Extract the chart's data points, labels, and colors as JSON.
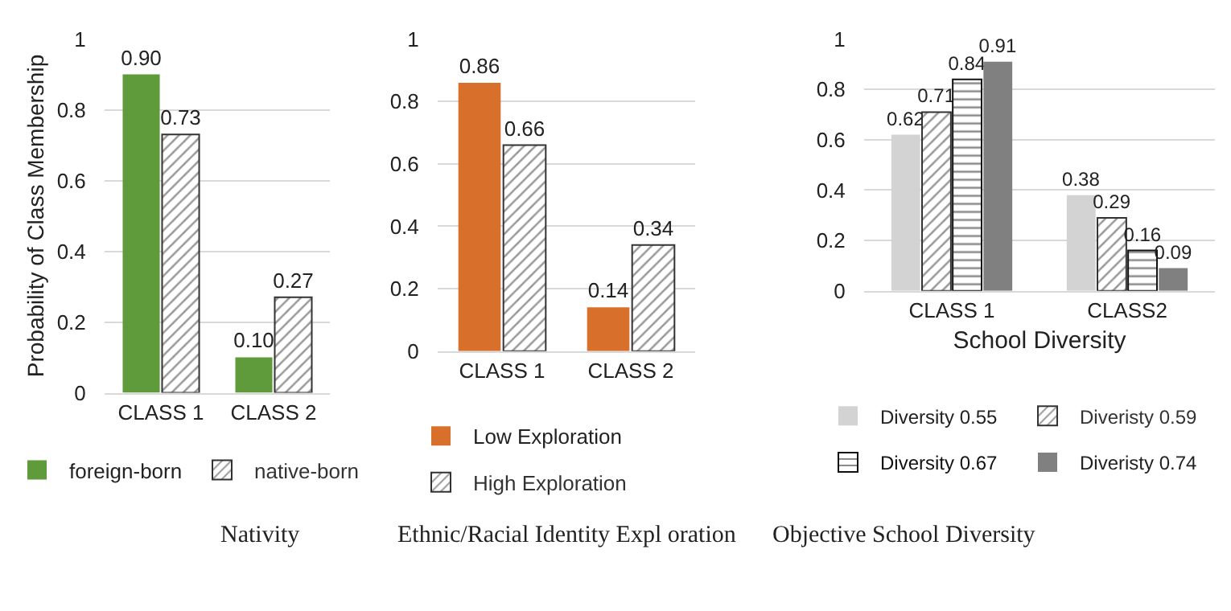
{
  "chart_data": [
    {
      "type": "bar",
      "title": "Nativity",
      "ylabel": "Probability of Class Membership",
      "categories": [
        "CLASS 1",
        "CLASS 2"
      ],
      "ylim": [
        0,
        1
      ],
      "yticks": [
        0,
        0.2,
        0.4,
        0.6,
        0.8,
        1
      ],
      "grid": "y",
      "legend": "bottom",
      "series": [
        {
          "name": "foreign-born",
          "color": "#5f9b3b",
          "values": [
            0.9,
            0.1
          ],
          "value_labels": [
            "0.90",
            "0.10"
          ]
        },
        {
          "name": "native-born",
          "color": "#333333",
          "values": [
            0.73,
            0.27
          ],
          "value_labels": [
            "0.73",
            "0.27"
          ]
        }
      ]
    },
    {
      "type": "bar",
      "title": "Ethnic/Racial Identity Expl oration",
      "categories": [
        "CLASS 1",
        "CLASS 2"
      ],
      "ylim": [
        0,
        1
      ],
      "yticks": [
        0,
        0.2,
        0.4,
        0.6,
        0.8,
        1
      ],
      "grid": "y",
      "legend": "bottom",
      "series": [
        {
          "name": "Low Exploration",
          "color": "#d8702c",
          "values": [
            0.86,
            0.14
          ],
          "value_labels": [
            "0.86",
            "0.14"
          ]
        },
        {
          "name": "High Exploration",
          "color": "#333333",
          "values": [
            0.66,
            0.34
          ],
          "value_labels": [
            "0.66",
            "0.34"
          ]
        }
      ]
    },
    {
      "type": "bar",
      "title": "Objective School Diversity",
      "xlabel": "School Diversity",
      "categories": [
        "CLASS 1",
        "CLASS2"
      ],
      "ylim": [
        0,
        1
      ],
      "yticks": [
        0,
        0.2,
        0.4,
        0.6,
        0.8,
        1
      ],
      "grid": "y",
      "legend": "bottom",
      "series": [
        {
          "name": "Diversity 0.55",
          "color": "#d3d3d3",
          "values": [
            0.62,
            0.38
          ],
          "value_labels": [
            "0.62",
            "0.38"
          ]
        },
        {
          "name": "Diveristy 0.59",
          "color": "#333333",
          "values": [
            0.71,
            0.29
          ],
          "value_labels": [
            "0.71",
            "0.29"
          ]
        },
        {
          "name": "Diversity 0.67",
          "color": "#111111",
          "values": [
            0.84,
            0.16
          ],
          "value_labels": [
            "0.84",
            "0.16"
          ]
        },
        {
          "name": "Diveristy 0.74",
          "color": "#808080",
          "values": [
            0.91,
            0.09
          ],
          "value_labels": [
            "0.91",
            "0.09"
          ]
        }
      ]
    }
  ]
}
